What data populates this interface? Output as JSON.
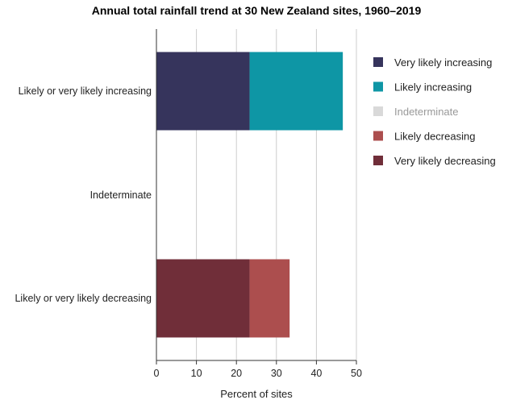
{
  "chart_data": {
    "type": "bar",
    "orientation": "horizontal",
    "stacked": true,
    "title": "Annual total rainfall trend at 30 New Zealand sites, 1960–2019",
    "xlabel": "Percent of sites",
    "ylabel": "",
    "xlim": [
      0,
      50
    ],
    "xticks": [
      0,
      10,
      20,
      30,
      40,
      50
    ],
    "grid": true,
    "legend_position": "right",
    "categories": [
      "Likely or very likely increasing",
      "Indeterminate",
      "Likely or very likely decreasing"
    ],
    "series": [
      {
        "name": "Very likely increasing",
        "color": "#36345c",
        "values": [
          23.3,
          0,
          0
        ]
      },
      {
        "name": "Likely increasing",
        "color": "#0e96a5",
        "values": [
          23.3,
          0,
          0
        ]
      },
      {
        "name": "Indeterminate",
        "color": "#d9d9d9",
        "values": [
          0,
          0,
          0
        ]
      },
      {
        "name": "Likely decreasing",
        "color": "#ac4e4e",
        "values": [
          0,
          0,
          10.0
        ]
      },
      {
        "name": "Very likely decreasing",
        "color": "#702e39",
        "values": [
          0,
          0,
          23.3
        ]
      }
    ]
  }
}
